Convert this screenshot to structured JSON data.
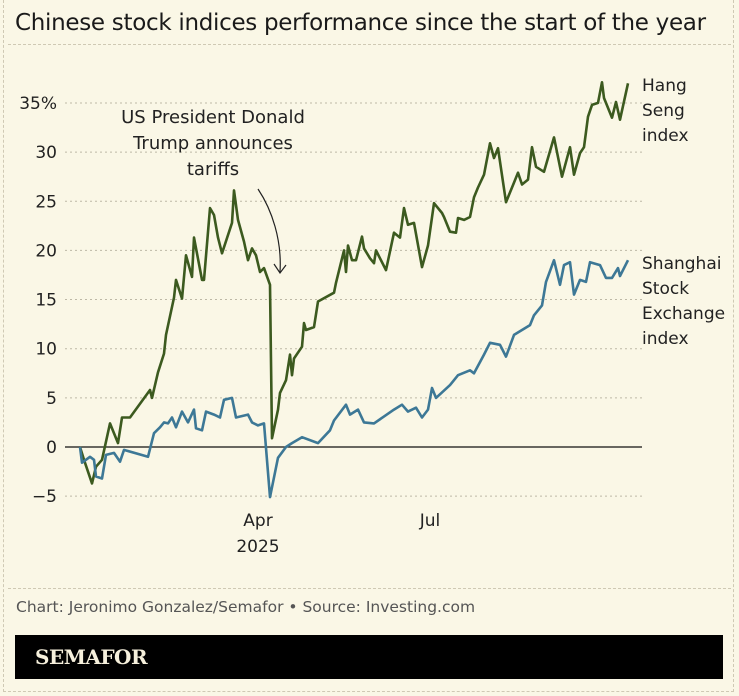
{
  "title": "Chinese stock indices performance since the start of the year",
  "source": "Chart: Jeronimo Gonzalez/Semafor • Source: Investing.com",
  "brand": "SEMAFOR",
  "chart_data": {
    "type": "line",
    "title": "Chinese stock indices performance since the start of the year",
    "xlabel": "",
    "ylabel": "",
    "ylim": [
      -5,
      37
    ],
    "y_ticks": [
      -5,
      0,
      5,
      10,
      15,
      20,
      25,
      30,
      35
    ],
    "y_tick_labels": [
      "−5",
      "0",
      "5",
      "10",
      "15",
      "20",
      "25",
      "30",
      "35%"
    ],
    "x_ticks": [
      {
        "date": "2025-04-07",
        "label": "Apr",
        "sublabel": "2025"
      },
      {
        "date": "2025-07-02",
        "label": "Jul",
        "sublabel": ""
      }
    ],
    "grid": true,
    "legend": "direct labels at right end of lines",
    "annotation": {
      "lines": [
        "US President Donald",
        "Trump announces",
        "tariffs"
      ],
      "points_to": "2025-04-07"
    },
    "series": [
      {
        "name": "Hang Seng index",
        "label_lines": [
          "Hang",
          "Seng",
          "index"
        ],
        "color": "#3c5a1f",
        "points": [
          [
            "2025-01-02",
            0
          ],
          [
            "2025-01-04",
            -1.3
          ],
          [
            "2025-01-08",
            -3.7
          ],
          [
            "2025-01-10",
            -2
          ],
          [
            "2025-01-13",
            -1.3
          ],
          [
            "2025-01-17",
            2.4
          ],
          [
            "2025-01-21",
            0.4
          ],
          [
            "2025-01-23",
            3
          ],
          [
            "2025-01-27",
            3
          ],
          [
            "2025-02-06",
            5.8
          ],
          [
            "2025-02-07",
            5
          ],
          [
            "2025-02-10",
            7.6
          ],
          [
            "2025-02-13",
            9.5
          ],
          [
            "2025-02-14",
            11.4
          ],
          [
            "2025-02-18",
            15.2
          ],
          [
            "2025-02-19",
            17
          ],
          [
            "2025-02-22",
            15.1
          ],
          [
            "2025-02-24",
            19.5
          ],
          [
            "2025-02-27",
            17.3
          ],
          [
            "2025-02-28",
            21.3
          ],
          [
            "2025-03-04",
            17
          ],
          [
            "2025-03-05",
            17
          ],
          [
            "2025-03-08",
            24.3
          ],
          [
            "2025-03-10",
            23.6
          ],
          [
            "2025-03-12",
            21.3
          ],
          [
            "2025-03-14",
            19.7
          ],
          [
            "2025-03-19",
            22.8
          ],
          [
            "2025-03-20",
            26.1
          ],
          [
            "2025-03-22",
            23.1
          ],
          [
            "2025-03-25",
            20.9
          ],
          [
            "2025-03-27",
            19
          ],
          [
            "2025-03-29",
            20.2
          ],
          [
            "2025-03-31",
            19.5
          ],
          [
            "2025-04-02",
            17.8
          ],
          [
            "2025-04-04",
            18.2
          ],
          [
            "2025-04-07",
            16.5
          ],
          [
            "2025-04-08",
            0.9
          ],
          [
            "2025-04-11",
            3.8
          ],
          [
            "2025-04-12",
            5.5
          ],
          [
            "2025-04-15",
            6.8
          ],
          [
            "2025-04-17",
            9.4
          ],
          [
            "2025-04-18",
            7.3
          ],
          [
            "2025-04-19",
            9
          ],
          [
            "2025-04-23",
            10.2
          ],
          [
            "2025-04-24",
            12.6
          ],
          [
            "2025-04-25",
            11.9
          ],
          [
            "2025-04-29",
            12.2
          ],
          [
            "2025-05-01",
            14.8
          ],
          [
            "2025-05-09",
            15.7
          ],
          [
            "2025-05-10",
            16.7
          ],
          [
            "2025-05-14",
            20
          ],
          [
            "2025-05-15",
            17.8
          ],
          [
            "2025-05-16",
            20.5
          ],
          [
            "2025-05-18",
            19
          ],
          [
            "2025-05-20",
            19
          ],
          [
            "2025-05-23",
            21.4
          ],
          [
            "2025-05-24",
            20.2
          ],
          [
            "2025-05-27",
            19.2
          ],
          [
            "2025-05-29",
            18.7
          ],
          [
            "2025-05-30",
            20
          ],
          [
            "2025-06-04",
            18
          ],
          [
            "2025-06-08",
            21.8
          ],
          [
            "2025-06-11",
            21.3
          ],
          [
            "2025-06-13",
            24.3
          ],
          [
            "2025-06-15",
            22.6
          ],
          [
            "2025-06-18",
            22.8
          ],
          [
            "2025-06-22",
            18.3
          ],
          [
            "2025-06-25",
            20.5
          ],
          [
            "2025-06-28",
            24.8
          ],
          [
            "2025-07-02",
            23.8
          ],
          [
            "2025-07-03",
            23.4
          ],
          [
            "2025-07-06",
            21.9
          ],
          [
            "2025-07-09",
            21.8
          ],
          [
            "2025-07-10",
            23.3
          ],
          [
            "2025-07-13",
            23.1
          ],
          [
            "2025-07-16",
            23.4
          ],
          [
            "2025-07-18",
            25.4
          ],
          [
            "2025-07-20",
            26.4
          ],
          [
            "2025-07-23",
            27.7
          ],
          [
            "2025-07-26",
            30.9
          ],
          [
            "2025-07-28",
            29.4
          ],
          [
            "2025-07-30",
            30.4
          ],
          [
            "2025-08-03",
            24.9
          ],
          [
            "2025-08-07",
            26.9
          ],
          [
            "2025-08-09",
            27.9
          ],
          [
            "2025-08-11",
            26.7
          ],
          [
            "2025-08-14",
            27.2
          ],
          [
            "2025-08-16",
            30.5
          ],
          [
            "2025-08-18",
            28.5
          ],
          [
            "2025-08-22",
            28
          ],
          [
            "2025-08-27",
            31.5
          ],
          [
            "2025-08-31",
            27.5
          ],
          [
            "2025-09-04",
            30.5
          ],
          [
            "2025-09-06",
            27.7
          ],
          [
            "2025-09-09",
            29.9
          ],
          [
            "2025-09-11",
            30.5
          ],
          [
            "2025-09-13",
            33.6
          ],
          [
            "2025-09-15",
            34.8
          ],
          [
            "2025-09-18",
            35
          ],
          [
            "2025-09-20",
            37.1
          ],
          [
            "2025-09-21",
            35.5
          ],
          [
            "2025-09-25",
            33.5
          ],
          [
            "2025-09-27",
            35.1
          ],
          [
            "2025-09-29",
            33.3
          ],
          [
            "2025-10-03",
            37
          ]
        ]
      },
      {
        "name": "Shanghai Stock Exchange index",
        "label_lines": [
          "Shanghai",
          "Stock",
          "Exchange",
          "index"
        ],
        "color": "#3d7896",
        "points": [
          [
            "2025-01-02",
            0
          ],
          [
            "2025-01-03",
            -1.6
          ],
          [
            "2025-01-07",
            -1
          ],
          [
            "2025-01-09",
            -1.3
          ],
          [
            "2025-01-10",
            -3
          ],
          [
            "2025-01-13",
            -3.2
          ],
          [
            "2025-01-15",
            -0.8
          ],
          [
            "2025-01-19",
            -0.6
          ],
          [
            "2025-01-22",
            -1.5
          ],
          [
            "2025-01-24",
            -0.3
          ],
          [
            "2025-02-05",
            -1
          ],
          [
            "2025-02-08",
            1.4
          ],
          [
            "2025-02-11",
            2
          ],
          [
            "2025-02-13",
            2.5
          ],
          [
            "2025-02-15",
            2.4
          ],
          [
            "2025-02-17",
            3
          ],
          [
            "2025-02-19",
            2
          ],
          [
            "2025-02-22",
            3.6
          ],
          [
            "2025-02-25",
            2.5
          ],
          [
            "2025-02-28",
            3.8
          ],
          [
            "2025-03-01",
            1.9
          ],
          [
            "2025-03-04",
            1.7
          ],
          [
            "2025-03-06",
            3.6
          ],
          [
            "2025-03-10",
            3.3
          ],
          [
            "2025-03-13",
            3
          ],
          [
            "2025-03-15",
            4.8
          ],
          [
            "2025-03-19",
            5
          ],
          [
            "2025-03-21",
            3
          ],
          [
            "2025-03-27",
            3.3
          ],
          [
            "2025-03-29",
            2.5
          ],
          [
            "2025-04-01",
            2.2
          ],
          [
            "2025-04-04",
            2.4
          ],
          [
            "2025-04-07",
            -5.1
          ],
          [
            "2025-04-11",
            -1.1
          ],
          [
            "2025-04-15",
            0
          ],
          [
            "2025-04-18",
            0.4
          ],
          [
            "2025-04-23",
            1
          ],
          [
            "2025-05-01",
            0.4
          ],
          [
            "2025-05-07",
            1.7
          ],
          [
            "2025-05-09",
            2.7
          ],
          [
            "2025-05-15",
            4.3
          ],
          [
            "2025-05-17",
            3.3
          ],
          [
            "2025-05-21",
            3.8
          ],
          [
            "2025-05-24",
            2.5
          ],
          [
            "2025-05-29",
            2.4
          ],
          [
            "2025-06-08",
            3.8
          ],
          [
            "2025-06-12",
            4.3
          ],
          [
            "2025-06-15",
            3.6
          ],
          [
            "2025-06-19",
            4
          ],
          [
            "2025-06-22",
            3
          ],
          [
            "2025-06-25",
            3.8
          ],
          [
            "2025-06-27",
            6
          ],
          [
            "2025-06-29",
            5
          ],
          [
            "2025-07-06",
            6.3
          ],
          [
            "2025-07-10",
            7.3
          ],
          [
            "2025-07-16",
            7.8
          ],
          [
            "2025-07-18",
            7.5
          ],
          [
            "2025-07-23",
            9.4
          ],
          [
            "2025-07-26",
            10.6
          ],
          [
            "2025-07-31",
            10.4
          ],
          [
            "2025-08-03",
            9.2
          ],
          [
            "2025-08-07",
            11.4
          ],
          [
            "2025-08-15",
            12.4
          ],
          [
            "2025-08-17",
            13.4
          ],
          [
            "2025-08-21",
            14.4
          ],
          [
            "2025-08-23",
            16.8
          ],
          [
            "2025-08-27",
            19
          ],
          [
            "2025-08-30",
            16.5
          ],
          [
            "2025-09-01",
            18.5
          ],
          [
            "2025-09-04",
            18.8
          ],
          [
            "2025-09-06",
            15.5
          ],
          [
            "2025-09-09",
            17
          ],
          [
            "2025-09-12",
            16.8
          ],
          [
            "2025-09-14",
            18.8
          ],
          [
            "2025-09-19",
            18.5
          ],
          [
            "2025-09-22",
            17.2
          ],
          [
            "2025-09-25",
            17.2
          ],
          [
            "2025-09-28",
            18.2
          ],
          [
            "2025-09-29",
            17.4
          ],
          [
            "2025-10-03",
            19
          ]
        ]
      }
    ]
  }
}
